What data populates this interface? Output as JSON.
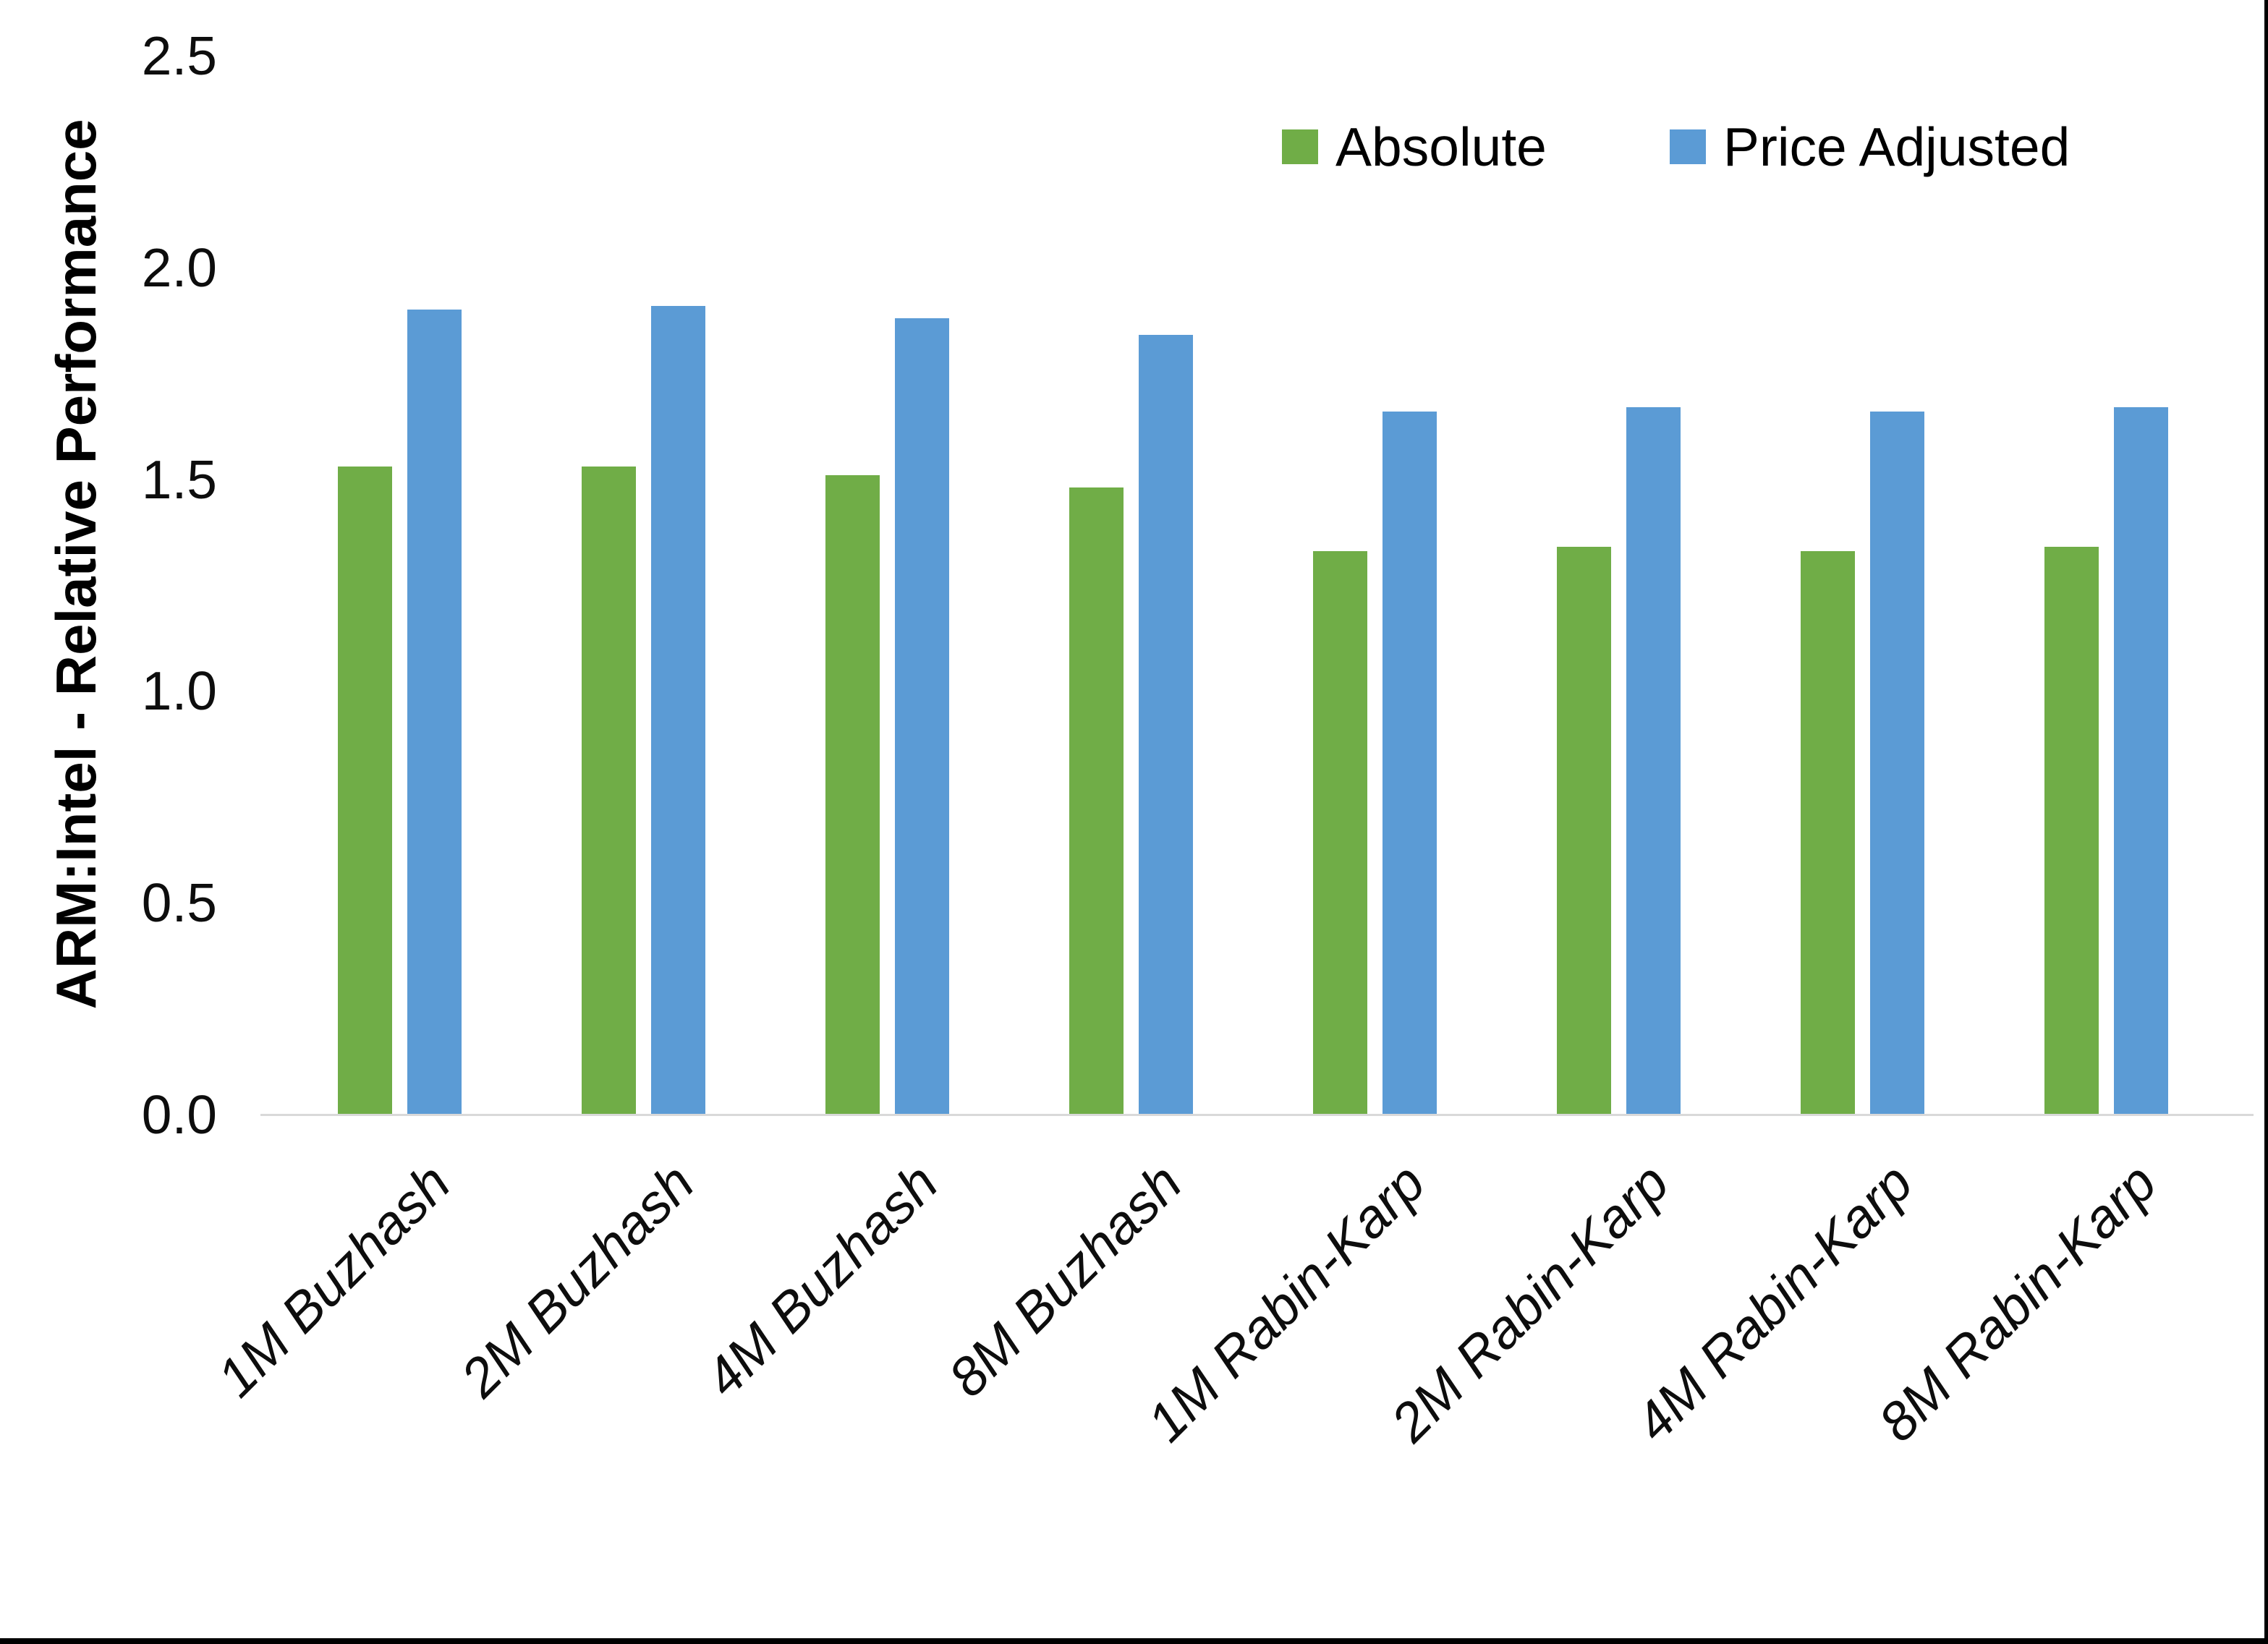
{
  "chart_data": {
    "type": "bar",
    "title": "",
    "xlabel": "",
    "ylabel": "ARM:Intel - Relative Performance",
    "categories": [
      "1M Buzhash",
      "2M Buzhash",
      "4M Buzhash",
      "8M Buzhash",
      "1M Rabin-Karp",
      "2M Rabin-Karp",
      "4M Rabin-Karp",
      "8M Rabin-Karp"
    ],
    "series": [
      {
        "name": "Absolute",
        "color": "#70AD47",
        "values": [
          1.53,
          1.53,
          1.51,
          1.48,
          1.33,
          1.34,
          1.33,
          1.34
        ]
      },
      {
        "name": "Price Adjusted",
        "color": "#5B9BD5",
        "values": [
          1.9,
          1.91,
          1.88,
          1.84,
          1.66,
          1.67,
          1.66,
          1.67
        ]
      }
    ],
    "ylim": [
      0,
      2.5
    ],
    "yticks": [
      "0.0",
      "0.5",
      "1.0",
      "1.5",
      "2.0",
      "2.5"
    ],
    "grid": false,
    "legend_position": "top-right",
    "axis_line_color": "#D9D9D9",
    "x_label_style": "italic, rotated 45deg"
  }
}
